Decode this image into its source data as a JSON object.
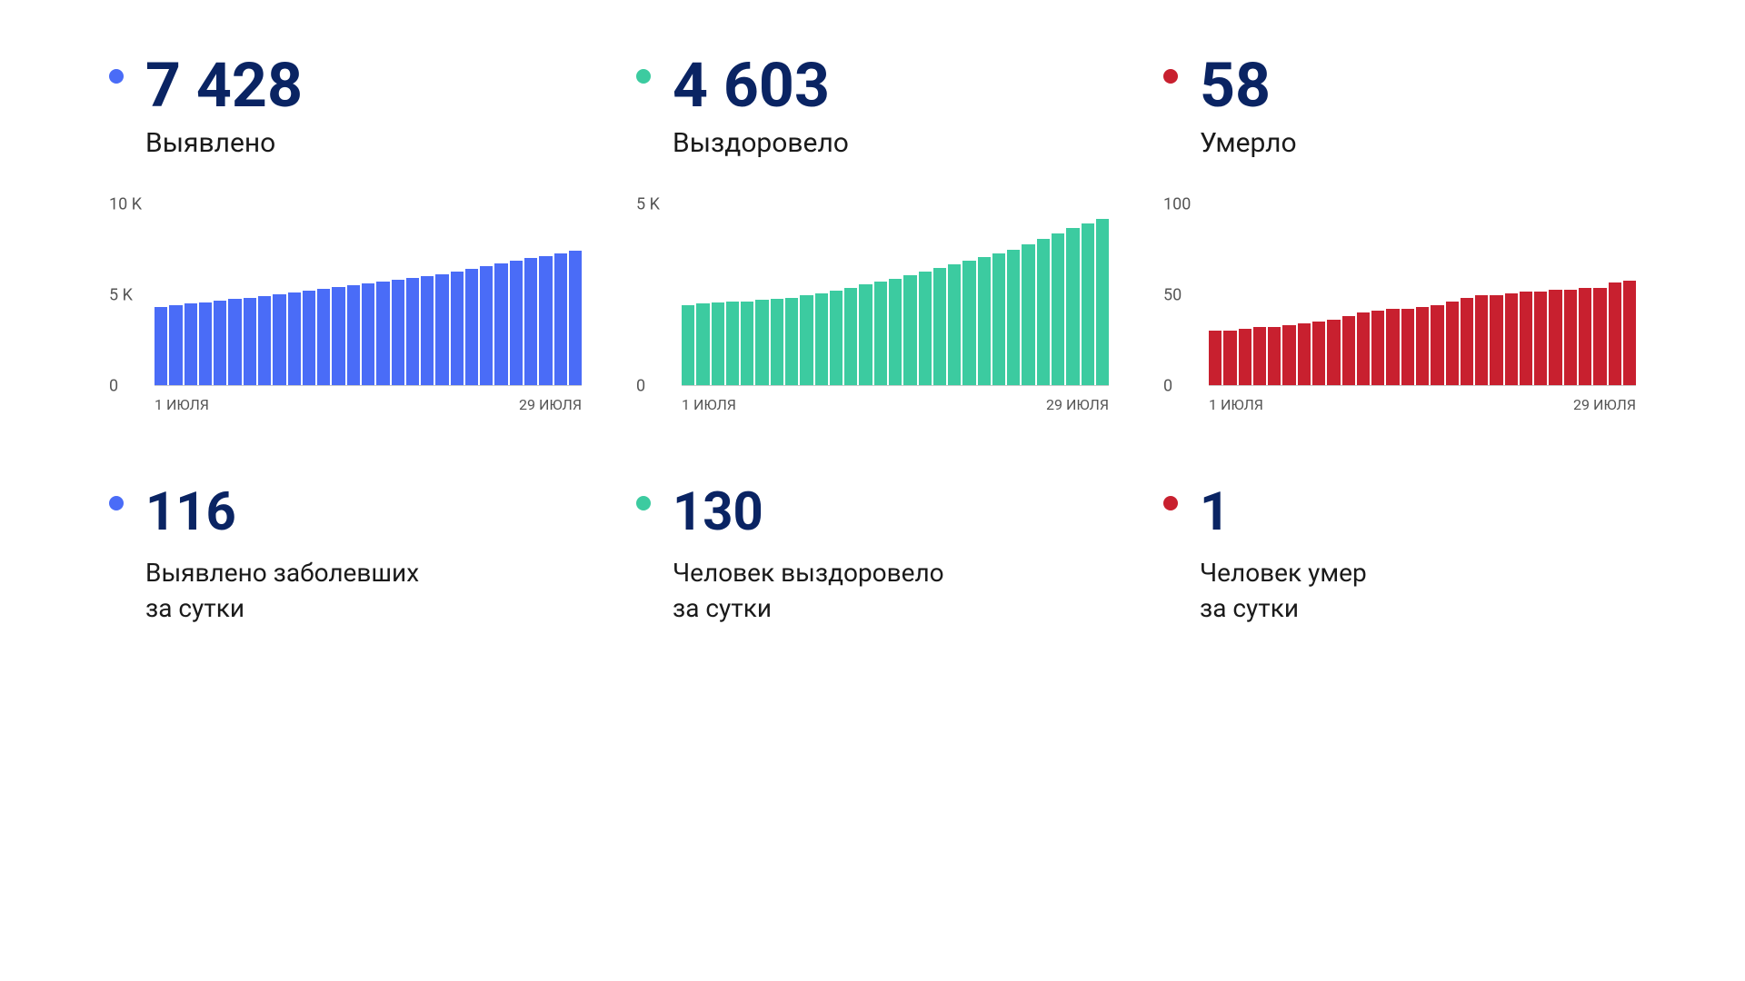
{
  "colors": {
    "blue": "#4a6cf7",
    "teal": "#3ccba0",
    "red": "#c8202f",
    "value_text": "#0a2463",
    "label_text": "#1a1a1a",
    "tick_text": "#555555",
    "background": "#ffffff",
    "axis_line": "#cccccc"
  },
  "typography": {
    "value_fontsize": 68,
    "label_fontsize": 30,
    "daily_value_fontsize": 58,
    "daily_label_fontsize": 28,
    "tick_fontsize": 18,
    "x_label_fontsize": 16
  },
  "x_axis": {
    "start_label": "1 ИЮЛЯ",
    "end_label": "29 ИЮЛЯ"
  },
  "stats": [
    {
      "id": "confirmed",
      "value": "7 428",
      "label": "Выявлено",
      "dot_color": "#4a6cf7",
      "chart": {
        "type": "bar",
        "bar_color": "#4a6cf7",
        "ymax": 10000,
        "yticks": [
          {
            "v": 10000,
            "label": "10 K"
          },
          {
            "v": 5000,
            "label": "5 K"
          },
          {
            "v": 0,
            "label": "0"
          }
        ],
        "values": [
          4300,
          4400,
          4500,
          4550,
          4650,
          4750,
          4850,
          4950,
          5050,
          5150,
          5250,
          5350,
          5450,
          5550,
          5650,
          5750,
          5850,
          5950,
          6050,
          6150,
          6300,
          6450,
          6600,
          6750,
          6900,
          7050,
          7150,
          7300,
          7428
        ]
      }
    },
    {
      "id": "recovered",
      "value": "4 603",
      "label": "Выздоровело",
      "dot_color": "#3ccba0",
      "chart": {
        "type": "bar",
        "bar_color": "#3ccba0",
        "ymax": 5000,
        "yticks": [
          {
            "v": 5000,
            "label": "5 K"
          },
          {
            "v": 0,
            "label": "0"
          }
        ],
        "values": [
          2200,
          2250,
          2280,
          2300,
          2320,
          2350,
          2380,
          2420,
          2480,
          2550,
          2620,
          2700,
          2780,
          2860,
          2950,
          3050,
          3150,
          3250,
          3350,
          3450,
          3550,
          3650,
          3750,
          3900,
          4050,
          4200,
          4350,
          4480,
          4603
        ]
      }
    },
    {
      "id": "deaths",
      "value": "58",
      "label": "Умерло",
      "dot_color": "#c8202f",
      "chart": {
        "type": "bar",
        "bar_color": "#c8202f",
        "ymax": 100,
        "yticks": [
          {
            "v": 100,
            "label": "100"
          },
          {
            "v": 50,
            "label": "50"
          },
          {
            "v": 0,
            "label": "0"
          }
        ],
        "values": [
          30,
          30,
          31,
          32,
          32,
          33,
          34,
          35,
          36,
          38,
          40,
          41,
          42,
          42,
          43,
          44,
          46,
          48,
          50,
          50,
          51,
          52,
          52,
          53,
          53,
          54,
          54,
          57,
          58
        ]
      }
    }
  ],
  "daily": [
    {
      "id": "daily-confirmed",
      "value": "116",
      "label": "Выявлено заболевших\nза сутки",
      "dot_color": "#4a6cf7"
    },
    {
      "id": "daily-recovered",
      "value": "130",
      "label": "Человек выздоровело\nза сутки",
      "dot_color": "#3ccba0"
    },
    {
      "id": "daily-deaths",
      "value": "1",
      "label": "Человек умер\nза сутки",
      "dot_color": "#c8202f"
    }
  ]
}
